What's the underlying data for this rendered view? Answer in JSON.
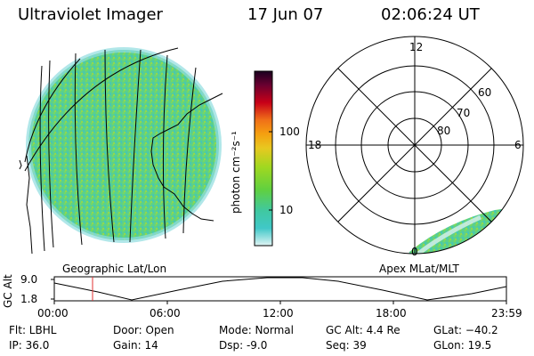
{
  "header": {
    "instrument": "Ultraviolet Imager",
    "date": "17 Jun 07",
    "time": "02:06:24 UT"
  },
  "colorbar": {
    "label": "photon cm⁻²s⁻¹",
    "ticks": [
      "100",
      "10"
    ],
    "colors": [
      "#1a0020",
      "#3a003a",
      "#6a0030",
      "#9a0020",
      "#c80018",
      "#e0301a",
      "#f07018",
      "#f5a010",
      "#e8c820",
      "#c0d818",
      "#90d820",
      "#60d040",
      "#40c890",
      "#40c8c8",
      "#90dde0",
      "#d8f0f0"
    ]
  },
  "panels": {
    "left_label": "Geographic Lat/Lon",
    "right_label": "Apex MLat/MLT"
  },
  "polar": {
    "mlt_labels": [
      "12",
      "18",
      "6",
      "0"
    ],
    "lat_labels": [
      "60",
      "70",
      "80"
    ]
  },
  "altitude_plot": {
    "ylabel": "GC Alt",
    "yticks": [
      "9.0",
      "1.8"
    ],
    "xticks": [
      "00:00",
      "06:00",
      "12:00",
      "18:00",
      "23:59"
    ],
    "marker_color": "#e03030"
  },
  "status": {
    "flt": "Flt: LBHL",
    "ip": "IP: 36.0",
    "door": "Door: Open",
    "gain": "Gain: 14",
    "mode": "Mode: Normal",
    "dsp": "Dsp:    -9.0",
    "gc_alt": "GC Alt: 4.4 Re",
    "seq": "Seq: 39",
    "glat": "GLat: −40.2",
    "glon": "GLon:  19.5"
  }
}
